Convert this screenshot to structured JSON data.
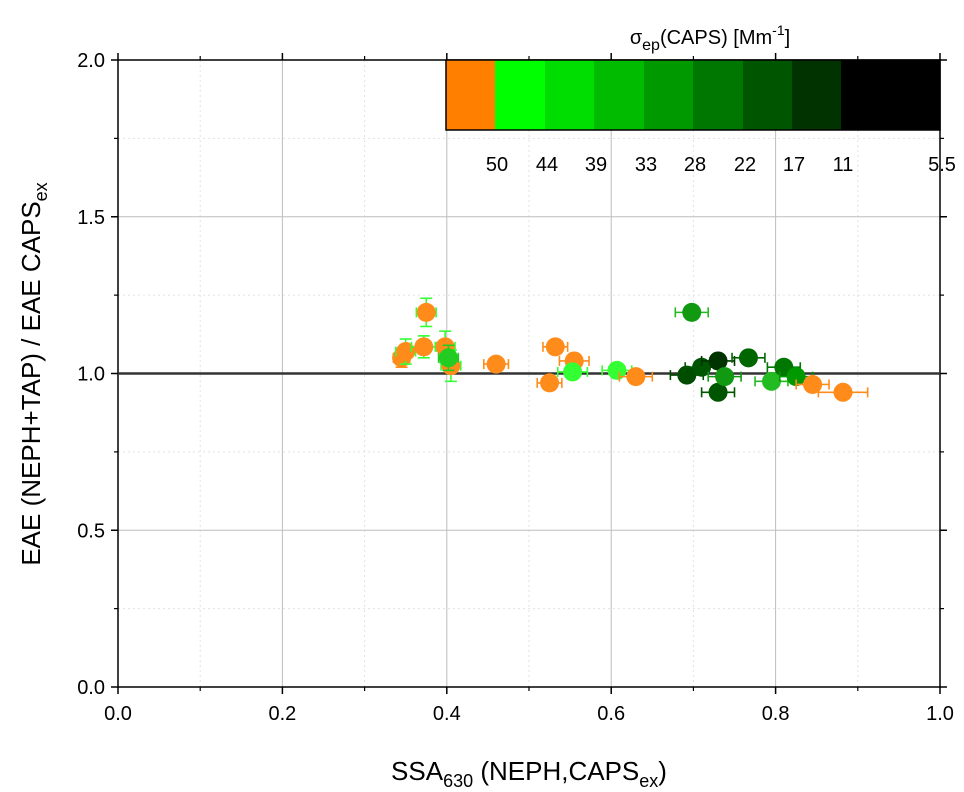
{
  "chart_data": {
    "type": "scatter",
    "xlabel": {
      "main": "SSA",
      "sub": "630",
      "rest_open": " (NEPH,CAPS",
      "rest_sub": "ex",
      "rest_close": ")"
    },
    "ylabel": {
      "main": "EAE (NEPH+TAP) / EAE CAPS",
      "sub": "ex"
    },
    "xlim": [
      0.0,
      1.0
    ],
    "ylim": [
      0.0,
      2.0
    ],
    "x_ticks": [
      "0.0",
      "0.2",
      "0.4",
      "0.6",
      "0.8",
      "1.0"
    ],
    "y_ticks": [
      "0.0",
      "0.5",
      "1.0",
      "1.5",
      "2.0"
    ],
    "grid": true,
    "reference_line_y": 1.0,
    "colorbar": {
      "title": {
        "sigma": "σ",
        "sigma_sub": "ep",
        "mid": "(CAPS) [Mm",
        "sup": "-1",
        "close": "]"
      },
      "labels": [
        "50",
        "44",
        "39",
        "33",
        "28",
        "22",
        "17",
        "11",
        "5.5"
      ],
      "colors": [
        "#ff8000",
        "#00ff00",
        "#00dd00",
        "#00bb00",
        "#009900",
        "#007700",
        "#005500",
        "#003300",
        "#000000",
        "#000000"
      ]
    },
    "points": [
      {
        "x": 0.345,
        "y": 1.05,
        "xerr": 0.01,
        "yerr": 0.03,
        "color": "#ff8c1a",
        "errcolor": "#ff8c1a"
      },
      {
        "x": 0.35,
        "y": 1.07,
        "xerr": 0.012,
        "yerr": 0.04,
        "color": "#ff8c1a",
        "errcolor": "#33ff33"
      },
      {
        "x": 0.372,
        "y": 1.085,
        "xerr": 0.015,
        "yerr": 0.035,
        "color": "#ff8c1a",
        "errcolor": "#33ff33"
      },
      {
        "x": 0.375,
        "y": 1.195,
        "xerr": 0.012,
        "yerr": 0.045,
        "color": "#ff8c1a",
        "errcolor": "#33ff33"
      },
      {
        "x": 0.398,
        "y": 1.085,
        "xerr": 0.012,
        "yerr": 0.05,
        "color": "#ff8c1a",
        "errcolor": "#33ff33"
      },
      {
        "x": 0.405,
        "y": 1.025,
        "xerr": 0.012,
        "yerr": 0.05,
        "color": "#ff8c1a",
        "errcolor": "#33ff33"
      },
      {
        "x": 0.402,
        "y": 1.05,
        "xerr": 0.012,
        "yerr": 0.04,
        "color": "#22cc22",
        "errcolor": "#22cc22"
      },
      {
        "x": 0.46,
        "y": 1.03,
        "xerr": 0.015,
        "yerr": 0.02,
        "color": "#ff8c1a",
        "errcolor": "#ff8c1a"
      },
      {
        "x": 0.525,
        "y": 0.97,
        "xerr": 0.015,
        "yerr": 0.02,
        "color": "#ff8c1a",
        "errcolor": "#ff8c1a"
      },
      {
        "x": 0.532,
        "y": 1.085,
        "xerr": 0.015,
        "yerr": 0.02,
        "color": "#ff8c1a",
        "errcolor": "#ff8c1a"
      },
      {
        "x": 0.555,
        "y": 1.04,
        "xerr": 0.018,
        "yerr": 0.02,
        "color": "#ff8c1a",
        "errcolor": "#ff8c1a"
      },
      {
        "x": 0.553,
        "y": 1.005,
        "xerr": 0.018,
        "yerr": 0.02,
        "color": "#33ff33",
        "errcolor": "#33ff33"
      },
      {
        "x": 0.607,
        "y": 1.01,
        "xerr": 0.018,
        "yerr": 0.02,
        "color": "#33ff33",
        "errcolor": "#33ff33"
      },
      {
        "x": 0.63,
        "y": 0.99,
        "xerr": 0.02,
        "yerr": 0.02,
        "color": "#ff8c1a",
        "errcolor": "#ff8c1a"
      },
      {
        "x": 0.692,
        "y": 0.995,
        "xerr": 0.02,
        "yerr": 0.02,
        "color": "#004d00",
        "errcolor": "#004d00"
      },
      {
        "x": 0.698,
        "y": 1.195,
        "xerr": 0.02,
        "yerr": 0.02,
        "color": "#119911",
        "errcolor": "#22bb22"
      },
      {
        "x": 0.71,
        "y": 1.02,
        "xerr": 0.02,
        "yerr": 0.02,
        "color": "#005500",
        "errcolor": "#005500"
      },
      {
        "x": 0.73,
        "y": 1.04,
        "xerr": 0.02,
        "yerr": 0.02,
        "color": "#003300",
        "errcolor": "#003300"
      },
      {
        "x": 0.73,
        "y": 0.94,
        "xerr": 0.02,
        "yerr": 0.02,
        "color": "#005500",
        "errcolor": "#005500"
      },
      {
        "x": 0.738,
        "y": 0.99,
        "xerr": 0.02,
        "yerr": 0.02,
        "color": "#119911",
        "errcolor": "#119911"
      },
      {
        "x": 0.767,
        "y": 1.05,
        "xerr": 0.02,
        "yerr": 0.02,
        "color": "#006600",
        "errcolor": "#006600"
      },
      {
        "x": 0.795,
        "y": 0.975,
        "xerr": 0.02,
        "yerr": 0.02,
        "color": "#22bb22",
        "errcolor": "#22bb22"
      },
      {
        "x": 0.81,
        "y": 1.02,
        "xerr": 0.02,
        "yerr": 0.02,
        "color": "#007700",
        "errcolor": "#007700"
      },
      {
        "x": 0.825,
        "y": 0.99,
        "xerr": 0.02,
        "yerr": 0.02,
        "color": "#009900",
        "errcolor": "#009900"
      },
      {
        "x": 0.845,
        "y": 0.965,
        "xerr": 0.02,
        "yerr": 0.02,
        "color": "#ff8c1a",
        "errcolor": "#ff8c1a"
      },
      {
        "x": 0.882,
        "y": 0.94,
        "xerr": 0.03,
        "yerr": 0.02,
        "color": "#ff8c1a",
        "errcolor": "#ff8c1a"
      }
    ]
  }
}
